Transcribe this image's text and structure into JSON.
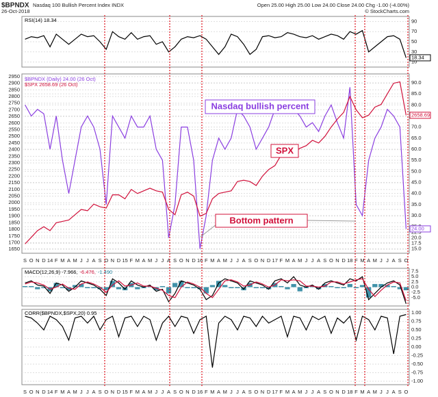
{
  "header": {
    "title": "$BPNDX",
    "subtitle": "Nasdaq 100 Bullish Percent Index INDX",
    "date": "26-Oct-2018",
    "quote": "Open 25.00  High 25.00  Low 24.00  Close 24.00  Chg -1.00 (-4.00%)",
    "credit": "© StockCharts.com"
  },
  "annotations": [
    "Nasdaq bullish percent",
    "SPX",
    "Bottom pattern"
  ],
  "chart_data": [
    {
      "type": "line",
      "ylim": [
        0,
        100
      ],
      "yticks": [
        10,
        30,
        50,
        70,
        90
      ],
      "grid": true,
      "legend": "upper left",
      "series": [
        {
          "name": "RSI(14) 18.34",
          "color": "#000000",
          "end_label": "18.34",
          "values": [
            55,
            60,
            58,
            62,
            40,
            65,
            55,
            45,
            55,
            65,
            60,
            62,
            50,
            35,
            70,
            60,
            55,
            68,
            55,
            60,
            62,
            45,
            50,
            30,
            40,
            55,
            60,
            58,
            62,
            55,
            40,
            25,
            40,
            65,
            60,
            45,
            25,
            35,
            60,
            62,
            58,
            60,
            68,
            65,
            60,
            58,
            62,
            55,
            60,
            65,
            62,
            55,
            70,
            65,
            72,
            30,
            40,
            50,
            60,
            62,
            55,
            18.34
          ]
        }
      ]
    },
    {
      "type": "line",
      "ylim": [
        1620,
        2970
      ],
      "y2lim": [
        13,
        94
      ],
      "grid": true,
      "legend": "upper left",
      "yticks": [
        1650,
        1700,
        1750,
        1800,
        1850,
        1900,
        1950,
        2000,
        2050,
        2100,
        2150,
        2200,
        2250,
        2300,
        2350,
        2400,
        2450,
        2500,
        2550,
        2600,
        2650,
        2700,
        2750,
        2800,
        2850,
        2900,
        2950
      ],
      "y2ticks": [
        {
          "value": 15,
          "label": "15.0"
        },
        17.5,
        {
          "value": 20,
          "label": "20.0"
        },
        22.5,
        {
          "value": 25,
          "label": "25.0"
        },
        {
          "value": 30,
          "label": "30.0"
        },
        {
          "value": 35,
          "label": "35.0"
        },
        {
          "value": 40,
          "label": "40.0"
        },
        {
          "value": 45,
          "label": "45.0"
        },
        {
          "value": 50,
          "label": "50.0"
        },
        {
          "value": 55,
          "label": "55.0"
        },
        {
          "value": 60,
          "label": "60.0"
        },
        {
          "value": 65,
          "label": "65.0"
        },
        {
          "value": 70,
          "label": "70.0"
        },
        {
          "value": 75,
          "label": "75.0"
        },
        {
          "value": 80,
          "label": "80.0"
        },
        {
          "value": 85,
          "label": "85.0"
        },
        {
          "value": 90,
          "label": "90.0"
        }
      ],
      "categories": [
        "S",
        "O",
        "N",
        "D",
        "14",
        "F",
        "M",
        "A",
        "M",
        "J",
        "J",
        "A",
        "S",
        "O",
        "N",
        "D",
        "15",
        "F",
        "M",
        "A",
        "M",
        "J",
        "J",
        "A",
        "S",
        "O",
        "N",
        "D",
        "16",
        "F",
        "M",
        "A",
        "M",
        "J",
        "J",
        "A",
        "S",
        "O",
        "N",
        "D",
        "17",
        "F",
        "M",
        "A",
        "M",
        "J",
        "J",
        "A",
        "S",
        "O",
        "N",
        "D",
        "18",
        "F",
        "M",
        "A",
        "M",
        "J",
        "J",
        "A",
        "S",
        "O"
      ],
      "series": [
        {
          "name": "$BPNDX (Daily) 24.00 (26 Oct)",
          "color": "#8a3ee0",
          "axis": "y2",
          "end_label": "24.00",
          "values": [
            80,
            75,
            78,
            76,
            60,
            75,
            55,
            40,
            55,
            70,
            75,
            70,
            60,
            35,
            75,
            70,
            65,
            75,
            70,
            70,
            75,
            60,
            55,
            20,
            35,
            70,
            70,
            55,
            15,
            30,
            55,
            65,
            60,
            65,
            78,
            75,
            70,
            60,
            65,
            70,
            78,
            82,
            80,
            78,
            75,
            70,
            72,
            68,
            75,
            80,
            72,
            65,
            88,
            35,
            30,
            55,
            65,
            70,
            78,
            75,
            70,
            24
          ]
        },
        {
          "name": "$SPX 2658.69 (26 Oct)",
          "color": "#d0103a",
          "end_label": "2658.69",
          "values": [
            1690,
            1740,
            1790,
            1820,
            1790,
            1850,
            1860,
            1870,
            1910,
            1950,
            1940,
            1990,
            1970,
            1960,
            2060,
            2060,
            2030,
            2100,
            2070,
            2090,
            2110,
            2090,
            2080,
            1950,
            1910,
            2060,
            2080,
            2050,
            1900,
            1920,
            2030,
            2070,
            2080,
            2090,
            2160,
            2170,
            2160,
            2130,
            2200,
            2250,
            2280,
            2360,
            2360,
            2380,
            2410,
            2430,
            2470,
            2450,
            2500,
            2570,
            2630,
            2680,
            2800,
            2700,
            2640,
            2660,
            2720,
            2740,
            2820,
            2900,
            2910,
            2658.69
          ]
        }
      ]
    },
    {
      "type": "line",
      "ylim": [
        -9,
        9
      ],
      "grid": true,
      "legend": "upper left",
      "yticks": [
        7.5,
        {
          "value": 5,
          "label": "5.0"
        },
        2.5,
        {
          "value": 0,
          "label": "0.0"
        },
        -2.5,
        {
          "value": -5,
          "label": "-5.0"
        }
      ],
      "series": [
        {
          "name": "MACD(12,26,9) -7.966,",
          "color": "#000000",
          "values": [
            2,
            3,
            1,
            0.5,
            -3,
            2,
            1,
            -2,
            0,
            3,
            2,
            1,
            -1,
            -4,
            4,
            2,
            -1,
            3,
            1,
            0,
            1,
            -2,
            -1,
            -7,
            -3,
            3,
            2,
            1,
            -1,
            -6,
            -4,
            2,
            4,
            3,
            2,
            -1,
            3,
            2,
            1,
            -1,
            3,
            4,
            2,
            5,
            1,
            0,
            1,
            -1,
            2,
            3,
            2,
            1,
            4,
            3,
            5,
            -6,
            -3,
            0,
            2,
            3,
            1,
            -7.966
          ]
        },
        {
          "name": "-6.476,",
          "color": "#d0103a",
          "values": [
            1.5,
            2.5,
            2,
            1,
            -1,
            0,
            1.5,
            -0.5,
            -1,
            1.5,
            2.5,
            1.5,
            0,
            -2.5,
            1,
            3,
            0.5,
            1,
            2,
            0.5,
            0.5,
            -0.5,
            -1.5,
            -4,
            -5,
            0,
            2.5,
            1.5,
            0,
            -3,
            -5,
            -1,
            3,
            3.5,
            2.5,
            0.5,
            1,
            2.5,
            1.5,
            0,
            1,
            3.5,
            3,
            3.5,
            3,
            0.5,
            0.5,
            0,
            0.5,
            2.5,
            2.5,
            1.5,
            2.5,
            3.5,
            4,
            -1,
            -4.5,
            -1.5,
            1,
            2.5,
            2,
            -6.476
          ]
        },
        {
          "name": "-1.490",
          "color": "#1f7f9a",
          "kind": "bar",
          "values": [
            0.5,
            0.5,
            -1,
            -0.5,
            -2,
            2,
            -0.5,
            -1.5,
            1,
            1.5,
            -0.5,
            -0.5,
            -1,
            -1.5,
            3,
            -1,
            -1.5,
            2,
            -1,
            -0.5,
            0.5,
            -1.5,
            0.5,
            -3,
            2,
            3,
            -0.5,
            -0.5,
            -1,
            -3,
            1,
            3,
            1,
            -0.5,
            -0.5,
            -1.5,
            2,
            -0.5,
            -0.5,
            -1,
            2,
            0.5,
            -1,
            1.5,
            -2,
            -0.5,
            0.5,
            -1,
            1.5,
            0.5,
            -0.5,
            -0.5,
            1.5,
            -0.5,
            1,
            -5,
            1.5,
            1.5,
            1,
            0.5,
            -1,
            -1.49
          ]
        }
      ]
    },
    {
      "type": "line",
      "ylim": [
        -1.1,
        1.1
      ],
      "grid": true,
      "legend": "upper left",
      "yticks": [
        {
          "value": 1,
          "label": "1.00"
        },
        0.75,
        {
          "value": 0.5,
          "label": "0.50"
        },
        0.25,
        {
          "value": 0,
          "label": "0.00"
        },
        -0.25,
        {
          "value": -0.5,
          "label": "-0.50"
        },
        -0.75,
        {
          "value": -1,
          "label": "-1.00"
        }
      ],
      "categories": [
        "S",
        "O",
        "N",
        "D",
        "14",
        "F",
        "M",
        "A",
        "M",
        "J",
        "J",
        "A",
        "S",
        "O",
        "N",
        "D",
        "15",
        "F",
        "M",
        "A",
        "M",
        "J",
        "J",
        "A",
        "S",
        "O",
        "N",
        "D",
        "16",
        "F",
        "M",
        "A",
        "M",
        "J",
        "J",
        "A",
        "S",
        "O",
        "N",
        "D",
        "17",
        "F",
        "M",
        "A",
        "M",
        "J",
        "J",
        "A",
        "S",
        "O",
        "N",
        "D",
        "18",
        "F",
        "M",
        "A",
        "M",
        "J",
        "J",
        "A",
        "S",
        "O"
      ],
      "series": [
        {
          "name": "CORR($BPNDX,$SPX,20) 0.95",
          "color": "#000000",
          "values": [
            0.9,
            0.85,
            0.7,
            0.5,
            0.9,
            0.8,
            0.6,
            0.2,
            0.85,
            0.9,
            0.7,
            0.9,
            0.5,
            0.8,
            0.9,
            0.3,
            0.85,
            0.9,
            0.6,
            0.9,
            0.8,
            0.2,
            0.7,
            0.9,
            0.6,
            0.9,
            0.85,
            0.4,
            0.8,
            0.9,
            -0.6,
            0.7,
            0.9,
            0.8,
            0.5,
            0.9,
            0.85,
            0.6,
            0.9,
            0.7,
            0.8,
            0.9,
            0.3,
            0.9,
            0.85,
            0.5,
            0.9,
            0.8,
            0.9,
            0.4,
            0.85,
            0.7,
            0.9,
            0.2,
            0.9,
            0.8,
            0.5,
            0.9,
            0.85,
            -0.2,
            0.9,
            0.95
          ]
        }
      ]
    }
  ]
}
